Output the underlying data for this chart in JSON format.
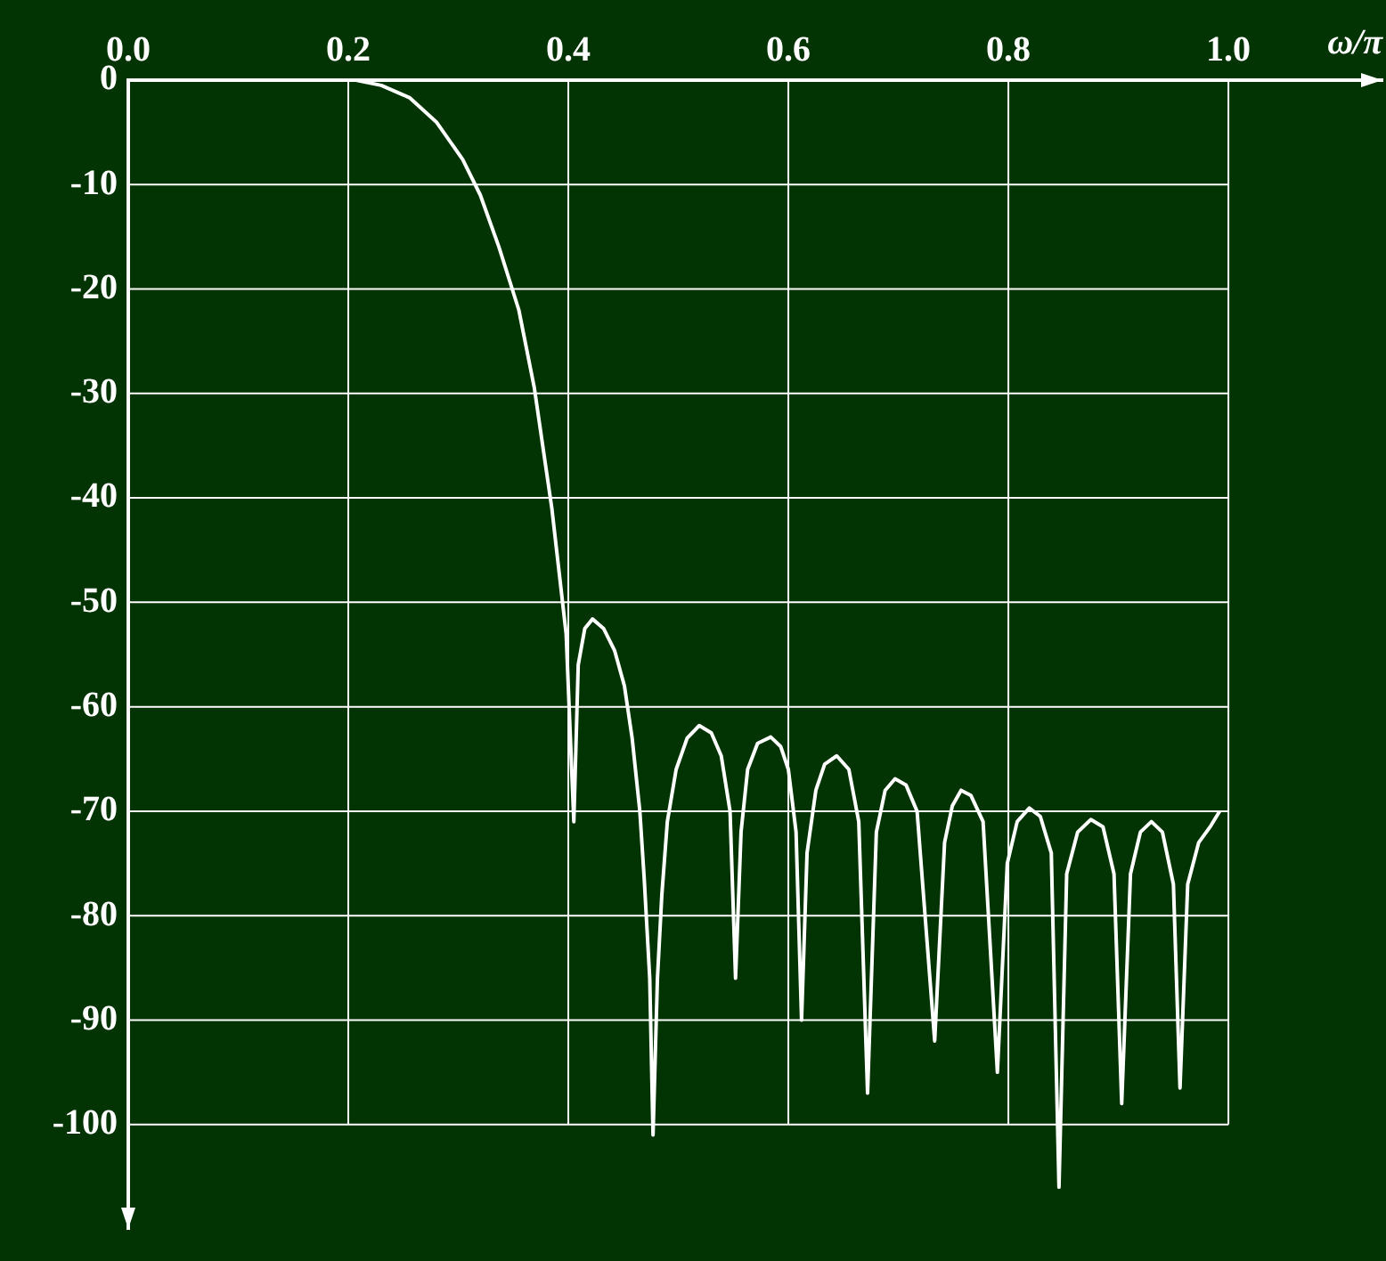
{
  "chart_data": {
    "type": "line",
    "xlabel": "ω/π",
    "xlim": [
      0,
      1.14
    ],
    "xticks": [
      {
        "value": 0,
        "label": "0.0"
      },
      0.2,
      0.4,
      0.6,
      0.8,
      {
        "value": 1,
        "label": "1.0"
      }
    ],
    "ylim": [
      -110,
      0
    ],
    "yticks": [
      0,
      -10,
      -20,
      -30,
      -40,
      -50,
      -60,
      -70,
      -80,
      -90,
      -100
    ],
    "grid": true,
    "legend": false,
    "marker": "none",
    "line_style": "solid",
    "series": [
      {
        "color": "#ffffff",
        "x": [
          0.207,
          0.23,
          0.256,
          0.28,
          0.304,
          0.32,
          0.337,
          0.355,
          0.369,
          0.385,
          0.398,
          0.405,
          0.409,
          0.415,
          0.422,
          0.432,
          0.442,
          0.451,
          0.458,
          0.465,
          0.469,
          0.474,
          0.477,
          0.481,
          0.485,
          0.49,
          0.498,
          0.508,
          0.519,
          0.53,
          0.539,
          0.547,
          0.552,
          0.557,
          0.563,
          0.572,
          0.584,
          0.593,
          0.6,
          0.607,
          0.612,
          0.617,
          0.625,
          0.633,
          0.644,
          0.655,
          0.664,
          0.672,
          0.68,
          0.688,
          0.697,
          0.707,
          0.717,
          0.733,
          0.742,
          0.749,
          0.757,
          0.766,
          0.777,
          0.79,
          0.799,
          0.808,
          0.819,
          0.829,
          0.839,
          0.846,
          0.853,
          0.863,
          0.875,
          0.886,
          0.896,
          0.903,
          0.911,
          0.92,
          0.93,
          0.94,
          0.95,
          0.956,
          0.963,
          0.973,
          0.984,
          0.992
        ],
        "values": [
          0,
          -0.5,
          -1.7,
          -4,
          -7.6,
          -11,
          -16,
          -22,
          -29.4,
          -41,
          -53,
          -71,
          -56,
          -52.5,
          -51.6,
          -52.5,
          -54.6,
          -58,
          -63,
          -70,
          -76.5,
          -86,
          -101,
          -86,
          -78,
          -71,
          -66,
          -63,
          -61.8,
          -62.5,
          -64.7,
          -70,
          -86,
          -72,
          -66,
          -63.5,
          -62.9,
          -63.8,
          -66,
          -72,
          -90,
          -74,
          -68,
          -65.5,
          -64.7,
          -66,
          -71,
          -97,
          -72,
          -68,
          -66.9,
          -67.5,
          -70,
          -92,
          -73,
          -69.5,
          -68,
          -68.5,
          -71,
          -95,
          -75,
          -71,
          -69.7,
          -70.5,
          -74,
          -106,
          -76,
          -72,
          -70.8,
          -71.5,
          -76,
          -98,
          -76,
          -72,
          -71,
          -72,
          -77,
          -96.5,
          -77,
          -73,
          -71.4,
          -70
        ]
      }
    ]
  }
}
